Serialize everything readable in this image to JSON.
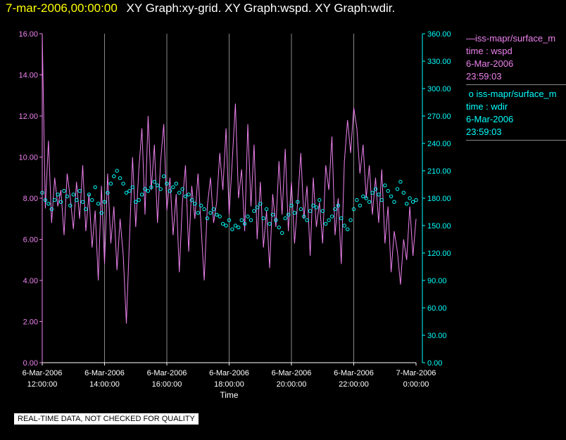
{
  "header": {
    "timestamp": "7-mar-2006,00:00:00",
    "graph_titles": "XY Graph:xy-grid.  XY Graph:wspd.  XY Graph:wdir."
  },
  "legend": {
    "series1": {
      "name": "iss-mapr/surface_m",
      "var": "time : wspd",
      "date": "6-Mar-2006",
      "time": "23:59:03"
    },
    "series2": {
      "name": "iss-mapr/surface_m",
      "var": "time : wdir",
      "date": "6-Mar-2006",
      "time": "23:59:03"
    }
  },
  "quality_note": "REAL-TIME DATA, NOT CHECKED FOR QUALITY",
  "chart_data": {
    "type": "line",
    "xlabel": "Time",
    "x_ticks": [
      {
        "top": "6-Mar-2006",
        "bottom": "12:00:00"
      },
      {
        "top": "6-Mar-2006",
        "bottom": "14:00:00"
      },
      {
        "top": "6-Mar-2006",
        "bottom": "16:00:00"
      },
      {
        "top": "6-Mar-2006",
        "bottom": "18:00:00"
      },
      {
        "top": "6-Mar-2006",
        "bottom": "20:00:00"
      },
      {
        "top": "6-Mar-2006",
        "bottom": "22:00:00"
      },
      {
        "top": "7-Mar-2006",
        "bottom": "0:00:00"
      }
    ],
    "x_hours": [
      0,
      2,
      4,
      6,
      8,
      10,
      12
    ],
    "xlim": [
      0,
      12
    ],
    "y_left": {
      "lim": [
        0,
        16
      ],
      "ticks": [
        "0.00",
        "2.00",
        "4.00",
        "6.00",
        "8.00",
        "10.00",
        "12.00",
        "14.00",
        "16.00"
      ]
    },
    "y_right": {
      "lim": [
        0,
        360
      ],
      "ticks": [
        "0.00",
        "30.00",
        "60.00",
        "90.00",
        "120.00",
        "150.00",
        "180.00",
        "210.00",
        "240.00",
        "270.00",
        "300.00",
        "330.00",
        "360.00"
      ]
    },
    "grid": "vertical",
    "colors": {
      "wspd": "#ee82ee",
      "wdir": "#00ffff",
      "grid": "#888888"
    },
    "series": [
      {
        "name": "time : wspd",
        "style": "line",
        "axis": "left",
        "x": [
          0,
          0.1,
          0.2,
          0.3,
          0.4,
          0.5,
          0.6,
          0.7,
          0.8,
          0.9,
          1.0,
          1.1,
          1.2,
          1.3,
          1.4,
          1.5,
          1.6,
          1.7,
          1.8,
          1.9,
          2.0,
          2.1,
          2.2,
          2.3,
          2.4,
          2.5,
          2.6,
          2.7,
          2.8,
          2.9,
          3.0,
          3.1,
          3.2,
          3.3,
          3.4,
          3.5,
          3.6,
          3.7,
          3.8,
          3.9,
          4.0,
          4.1,
          4.2,
          4.3,
          4.4,
          4.5,
          4.6,
          4.7,
          4.8,
          4.9,
          5.0,
          5.1,
          5.2,
          5.3,
          5.4,
          5.5,
          5.6,
          5.7,
          5.8,
          5.9,
          6.0,
          6.1,
          6.2,
          6.3,
          6.4,
          6.5,
          6.6,
          6.7,
          6.8,
          6.9,
          7.0,
          7.1,
          7.2,
          7.3,
          7.4,
          7.5,
          7.6,
          7.7,
          7.8,
          7.9,
          8.0,
          8.1,
          8.2,
          8.3,
          8.4,
          8.5,
          8.6,
          8.7,
          8.8,
          8.9,
          9.0,
          9.1,
          9.2,
          9.3,
          9.4,
          9.5,
          9.6,
          9.7,
          9.8,
          9.9,
          10.0,
          10.1,
          10.2,
          10.3,
          10.4,
          10.5,
          10.6,
          10.7,
          10.8,
          10.9,
          11.0,
          11.1,
          11.2,
          11.3,
          11.4,
          11.5,
          11.6,
          11.7,
          11.8,
          11.9,
          12.0
        ],
        "values": [
          16.0,
          7.5,
          10.8,
          6.8,
          9.0,
          7.6,
          8.4,
          6.2,
          9.2,
          8.0,
          6.5,
          8.8,
          7.0,
          9.6,
          6.4,
          8.2,
          5.6,
          7.4,
          4.0,
          8.6,
          4.8,
          9.2,
          5.8,
          7.6,
          4.5,
          7.0,
          5.2,
          1.9,
          6.0,
          10.0,
          6.6,
          9.4,
          11.4,
          7.2,
          12.0,
          8.4,
          10.6,
          6.8,
          9.8,
          11.6,
          7.4,
          9.0,
          6.2,
          8.2,
          4.4,
          7.8,
          9.6,
          5.4,
          8.6,
          7.0,
          9.2,
          6.6,
          4.0,
          7.6,
          9.0,
          6.8,
          7.8,
          10.2,
          8.4,
          11.4,
          7.2,
          9.8,
          12.6,
          8.0,
          9.4,
          6.4,
          11.6,
          7.6,
          10.6,
          6.0,
          8.8,
          5.6,
          7.4,
          4.6,
          8.2,
          6.6,
          9.8,
          7.2,
          10.4,
          6.4,
          8.8,
          5.8,
          7.8,
          10.2,
          7.0,
          8.6,
          5.2,
          9.0,
          6.6,
          7.8,
          5.8,
          9.6,
          8.4,
          11.0,
          6.2,
          8.0,
          4.8,
          9.8,
          11.8,
          10.2,
          12.4,
          11.4,
          9.2,
          10.6,
          8.0,
          9.6,
          7.2,
          9.0,
          6.8,
          9.4,
          5.8,
          7.6,
          4.4,
          6.4,
          5.4,
          3.8,
          6.0,
          5.0,
          7.6,
          5.2,
          7.0
        ]
      },
      {
        "name": "time : wdir",
        "style": "points",
        "axis": "right",
        "x": [
          0,
          0.1,
          0.2,
          0.3,
          0.4,
          0.5,
          0.6,
          0.7,
          0.8,
          0.9,
          1.0,
          1.1,
          1.2,
          1.3,
          1.4,
          1.5,
          1.6,
          1.7,
          1.8,
          1.9,
          2.0,
          2.1,
          2.2,
          2.3,
          2.4,
          2.5,
          2.6,
          2.7,
          2.8,
          2.9,
          3.0,
          3.1,
          3.2,
          3.3,
          3.4,
          3.5,
          3.6,
          3.7,
          3.8,
          3.9,
          4.0,
          4.1,
          4.2,
          4.3,
          4.4,
          4.5,
          4.6,
          4.7,
          4.8,
          4.9,
          5.0,
          5.1,
          5.2,
          5.3,
          5.4,
          5.5,
          5.6,
          5.7,
          5.8,
          5.9,
          6.0,
          6.1,
          6.2,
          6.3,
          6.4,
          6.5,
          6.6,
          6.7,
          6.8,
          6.9,
          7.0,
          7.1,
          7.2,
          7.3,
          7.4,
          7.5,
          7.6,
          7.7,
          7.8,
          7.9,
          8.0,
          8.1,
          8.2,
          8.3,
          8.4,
          8.5,
          8.6,
          8.7,
          8.8,
          8.9,
          9.0,
          9.1,
          9.2,
          9.3,
          9.4,
          9.5,
          9.6,
          9.7,
          9.8,
          9.9,
          10.0,
          10.1,
          10.2,
          10.3,
          10.4,
          10.5,
          10.6,
          10.7,
          10.8,
          10.9,
          11.0,
          11.1,
          11.2,
          11.3,
          11.4,
          11.5,
          11.6,
          11.7,
          11.8,
          11.9,
          12.0
        ],
        "values": [
          186,
          178,
          174,
          168,
          178,
          184,
          176,
          188,
          182,
          172,
          184,
          178,
          188,
          176,
          168,
          184,
          178,
          192,
          174,
          164,
          176,
          186,
          196,
          204,
          210,
          202,
          196,
          186,
          188,
          192,
          176,
          178,
          184,
          190,
          188,
          192,
          198,
          194,
          190,
          204,
          196,
          188,
          192,
          196,
          186,
          190,
          182,
          184,
          178,
          174,
          164,
          172,
          168,
          158,
          164,
          168,
          162,
          160,
          152,
          150,
          156,
          146,
          150,
          148,
          156,
          152,
          160,
          156,
          166,
          170,
          174,
          158,
          168,
          152,
          162,
          156,
          148,
          142,
          158,
          162,
          172,
          164,
          176,
          168,
          160,
          156,
          166,
          172,
          170,
          178,
          166,
          152,
          156,
          160,
          168,
          172,
          158,
          150,
          146,
          156,
          168,
          178,
          172,
          182,
          180,
          176,
          186,
          190,
          184,
          178,
          194,
          188,
          182,
          176,
          190,
          198,
          186,
          174,
          180,
          176,
          178
        ]
      }
    ]
  }
}
